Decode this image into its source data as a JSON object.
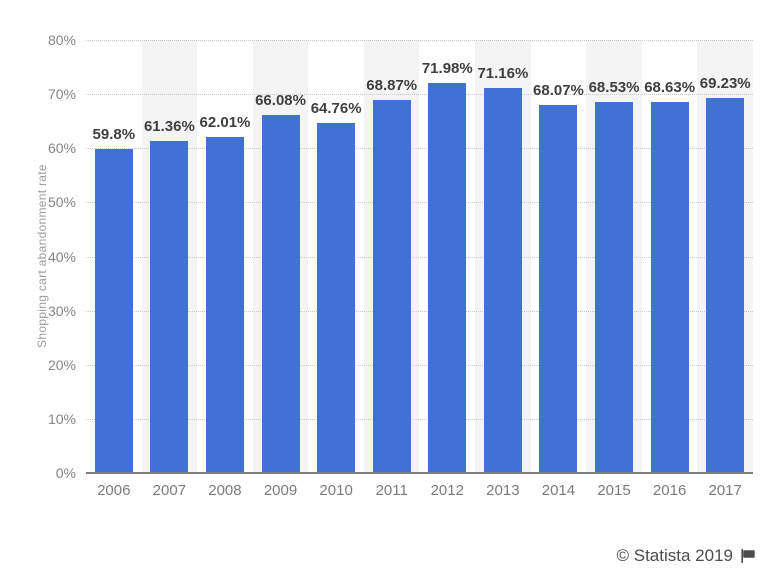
{
  "chart_data": {
    "type": "bar",
    "title": "",
    "xlabel": "",
    "ylabel": "Shopping cart abandonment rate",
    "categories": [
      "2006",
      "2007",
      "2008",
      "2009",
      "2010",
      "2011",
      "2012",
      "2013",
      "2014",
      "2015",
      "2016",
      "2017"
    ],
    "values": [
      59.8,
      61.36,
      62.01,
      66.08,
      64.76,
      68.87,
      71.98,
      71.16,
      68.07,
      68.53,
      68.63,
      69.23
    ],
    "value_labels": [
      "59.8%",
      "61.36%",
      "62.01%",
      "66.08%",
      "64.76%",
      "68.87%",
      "71.98%",
      "71.16%",
      "68.07%",
      "68.53%",
      "68.63%",
      "69.23%"
    ],
    "ylim": [
      0,
      80
    ],
    "ytick_step": 10,
    "ytick_labels": [
      "0%",
      "10%",
      "20%",
      "30%",
      "40%",
      "50%",
      "60%",
      "70%",
      "80%"
    ],
    "grid": "horizontal-dotted",
    "legend_position": "none",
    "bar_color": "#3f72d4",
    "band_color": "#f4f4f5",
    "gridline_color": "#c9c9c9",
    "axis_line_color": "#7d7d7d"
  },
  "footer": {
    "copyright": "© Statista 2019"
  }
}
